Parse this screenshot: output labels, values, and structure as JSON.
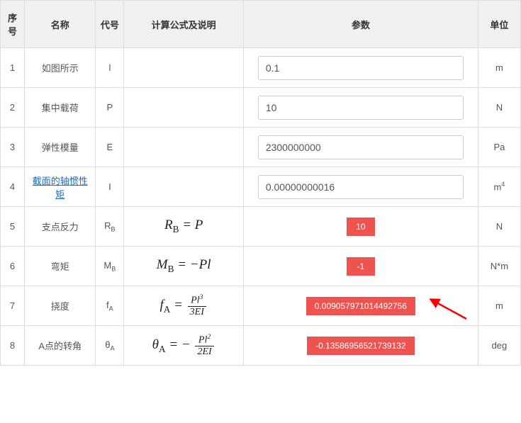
{
  "headers": {
    "seq": "序号",
    "name": "名称",
    "sym": "代号",
    "formula": "计算公式及说明",
    "param": "参数",
    "unit": "单位"
  },
  "rows": [
    {
      "seq": "1",
      "name": "如图所示",
      "name_link": false,
      "sym_html": "l",
      "formula_html": "",
      "param_type": "input",
      "param_value": "0.1",
      "unit_html": "m"
    },
    {
      "seq": "2",
      "name": "集中载荷",
      "name_link": false,
      "sym_html": "P",
      "formula_html": "",
      "param_type": "input",
      "param_value": "10",
      "unit_html": "N"
    },
    {
      "seq": "3",
      "name": "弹性模量",
      "name_link": false,
      "sym_html": "E",
      "formula_html": "",
      "param_type": "input",
      "param_value": "2300000000",
      "unit_html": "Pa"
    },
    {
      "seq": "4",
      "name": "截面的轴惯性矩",
      "name_link": true,
      "sym_html": "I",
      "formula_html": "",
      "param_type": "input",
      "param_value": "0.00000000016",
      "unit_html": "m<span class=\"ss\">4</span>"
    },
    {
      "seq": "5",
      "name": "支点反力",
      "name_link": false,
      "sym_html": "R<span class=\"ss\">B</span>",
      "formula_html": "<span class=\"formula\">R<span class=\"sub\">B</span> = P</span>",
      "param_type": "badge",
      "param_value": "10",
      "unit_html": "N"
    },
    {
      "seq": "6",
      "name": "弯矩",
      "name_link": false,
      "sym_html": "M<span class=\"ss\">B</span>",
      "formula_html": "<span class=\"formula\">M<span class=\"sub\">B</span> = −Pl</span>",
      "param_type": "badge",
      "param_value": "-1",
      "unit_html": "N*m"
    },
    {
      "seq": "7",
      "name": "挠度",
      "name_link": false,
      "sym_html": "f<span class=\"ss\">A</span>",
      "formula_html": "<span class=\"formula\">f<span class=\"sub\">A</span> = <span class=\"frac\"><span class=\"num\">Pl<span class=\"sup\">3</span></span><span class=\"den\">3EI</span></span></span>",
      "param_type": "badge",
      "param_value": "0.009057971014492756",
      "unit_html": "m",
      "arrow": true
    },
    {
      "seq": "8",
      "name": "A点的转角",
      "name_link": false,
      "sym_html": "θ<span class=\"ss\">A</span>",
      "formula_html": "<span class=\"formula\">θ<span class=\"sub\">A</span> = − <span class=\"frac\"><span class=\"num\">Pl<span class=\"sup\">2</span></span><span class=\"den\">2EI</span></span></span>",
      "param_type": "badge",
      "param_value": "-0.13586956521739132",
      "unit_html": "deg"
    }
  ],
  "style": {
    "badge_bg": "#ef5350",
    "badge_fg": "#ffffff",
    "header_bg": "#f0f0f0",
    "border_color": "#dddddd",
    "link_color": "#1e6bb8",
    "arrow_color": "#ff0000"
  }
}
